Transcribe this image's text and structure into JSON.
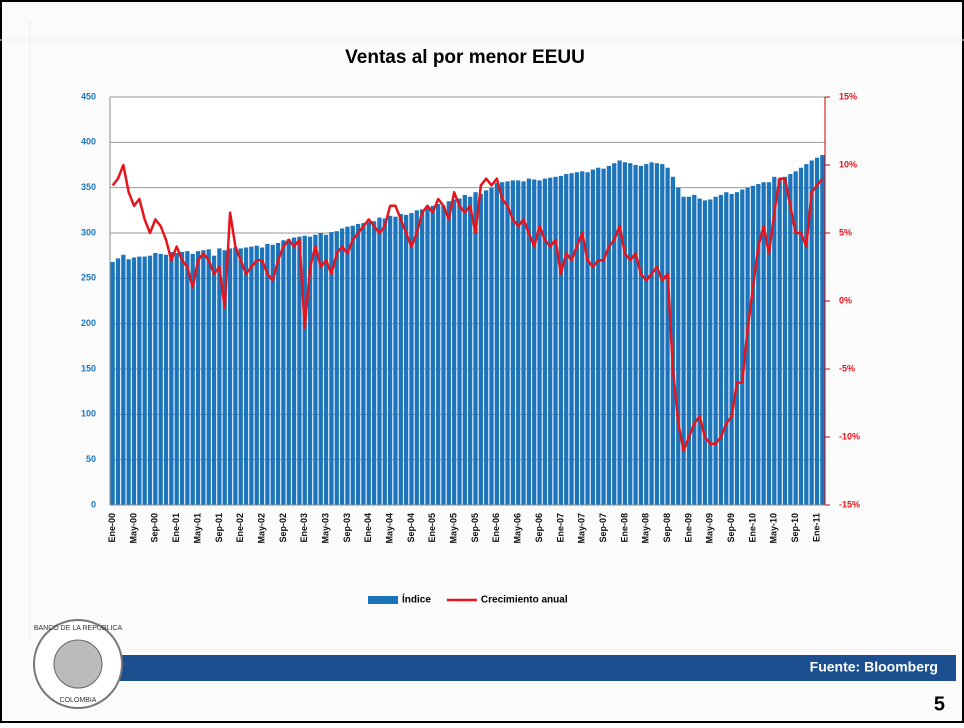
{
  "chart_data": {
    "type": "bar_line",
    "title": "Ventas al por menor EEUU",
    "categories": [
      "Ene-00",
      null,
      null,
      null,
      "May-00",
      null,
      null,
      null,
      "Sep-00",
      null,
      null,
      null,
      "Ene-01",
      null,
      null,
      null,
      "May-01",
      null,
      null,
      null,
      "Sep-01",
      null,
      null,
      null,
      "Ene-02",
      null,
      null,
      null,
      "May-02",
      null,
      null,
      null,
      "Sep-02",
      null,
      null,
      null,
      "Ene-03",
      null,
      null,
      null,
      "May-03",
      null,
      null,
      null,
      "Sep-03",
      null,
      null,
      null,
      "Ene-04",
      null,
      null,
      null,
      "May-04",
      null,
      null,
      null,
      "Sep-04",
      null,
      null,
      null,
      "Ene-05",
      null,
      null,
      null,
      "May-05",
      null,
      null,
      null,
      "Sep-05",
      null,
      null,
      null,
      "Ene-06",
      null,
      null,
      null,
      "May-06",
      null,
      null,
      null,
      "Sep-06",
      null,
      null,
      null,
      "Ene-07",
      null,
      null,
      null,
      "May-07",
      null,
      null,
      null,
      "Sep-07",
      null,
      null,
      null,
      "Ene-08",
      null,
      null,
      null,
      "May-08",
      null,
      null,
      null,
      "Sep-08",
      null,
      null,
      null,
      "Ene-09",
      null,
      null,
      null,
      "May-09",
      null,
      null,
      null,
      "Sep-09",
      null,
      null,
      null,
      "Ene-10",
      null,
      null,
      null,
      "May-10",
      null,
      null,
      null,
      "Sep-10",
      null,
      null,
      null,
      "Ene-11",
      null
    ],
    "series": [
      {
        "name": "Índice",
        "type": "bar",
        "color": "#1c75bc",
        "values": [
          268,
          272,
          276,
          271,
          273,
          274,
          274,
          275,
          278,
          277,
          276,
          279,
          278,
          279,
          280,
          277,
          280,
          281,
          282,
          275,
          283,
          281,
          283,
          284,
          283,
          284,
          285,
          286,
          284,
          288,
          287,
          289,
          292,
          293,
          295,
          296,
          297,
          296,
          298,
          300,
          298,
          301,
          302,
          305,
          307,
          308,
          310,
          311,
          312,
          313,
          317,
          316,
          319,
          318,
          321,
          320,
          322,
          325,
          326,
          328,
          330,
          332,
          330,
          335,
          337,
          338,
          342,
          340,
          345,
          343,
          347,
          350,
          355,
          356,
          357,
          358,
          358,
          357,
          360,
          359,
          358,
          360,
          361,
          362,
          363,
          365,
          366,
          367,
          368,
          367,
          370,
          372,
          371,
          374,
          377,
          380,
          378,
          377,
          375,
          374,
          376,
          378,
          377,
          376,
          372,
          362,
          350,
          340,
          340,
          342,
          338,
          336,
          337,
          340,
          342,
          345,
          343,
          345,
          348,
          350,
          352,
          354,
          356,
          356,
          362,
          360,
          362,
          365,
          368,
          372,
          376,
          380,
          383,
          386
        ]
      },
      {
        "name": "Crecimiento anual",
        "type": "line",
        "axis": "y2",
        "color": "#e8141b",
        "values": [
          8.5,
          9,
          10,
          8,
          7,
          7.5,
          6,
          5,
          6,
          5.5,
          4.5,
          3,
          4,
          3,
          2.5,
          1,
          3,
          3.5,
          3,
          2,
          2.5,
          -0.5,
          6.5,
          4,
          3,
          2,
          2.5,
          3,
          3,
          2,
          1.5,
          3,
          4,
          4.5,
          4,
          4.5,
          -2,
          2.5,
          4,
          2.5,
          3,
          2,
          3.5,
          4,
          3.5,
          4.5,
          5,
          5.5,
          6,
          5.5,
          5,
          5.5,
          7,
          7,
          6,
          5,
          4,
          5,
          6.5,
          7,
          6.5,
          7.5,
          7,
          6,
          8,
          7,
          6.5,
          7,
          5,
          8.5,
          9,
          8.5,
          9,
          7.5,
          7,
          6,
          5.5,
          6,
          5,
          4,
          5.5,
          4.5,
          4,
          4.5,
          2,
          3.5,
          3,
          4,
          5,
          3,
          2.5,
          3,
          3,
          4,
          4.5,
          5.5,
          3.5,
          3,
          3.5,
          2,
          1.5,
          2,
          2.5,
          1.5,
          2,
          -5,
          -9,
          -11,
          -10,
          -9,
          -8.5,
          -10,
          -10.5,
          -10.5,
          -10,
          -9,
          -8.5,
          -6,
          -6,
          -2,
          1,
          4,
          5.5,
          3.5,
          6.5,
          9,
          9,
          7,
          5,
          5,
          4,
          8,
          8.5,
          9
        ]
      }
    ],
    "ylim": [
      0,
      450
    ],
    "yticks": [
      0,
      50,
      100,
      150,
      200,
      250,
      300,
      350,
      400,
      450
    ],
    "y2lim": [
      -15,
      15
    ],
    "y2ticks": [
      {
        "value": -15,
        "label": "-15%"
      },
      {
        "value": -10,
        "label": "-10%"
      },
      {
        "value": -5,
        "label": "-5%"
      },
      {
        "value": 0,
        "label": "0%"
      },
      {
        "value": 5,
        "label": "5%"
      },
      {
        "value": 10,
        "label": "10%"
      },
      {
        "value": 15,
        "label": "15%"
      }
    ],
    "grid": true,
    "legend": "bottom"
  },
  "footer": {
    "source": "Fuente: Bloomberg",
    "page_number": "5",
    "logo_top": "BANCO DE LA REPÚBLICA",
    "logo_bottom": "COLOMBIA"
  }
}
